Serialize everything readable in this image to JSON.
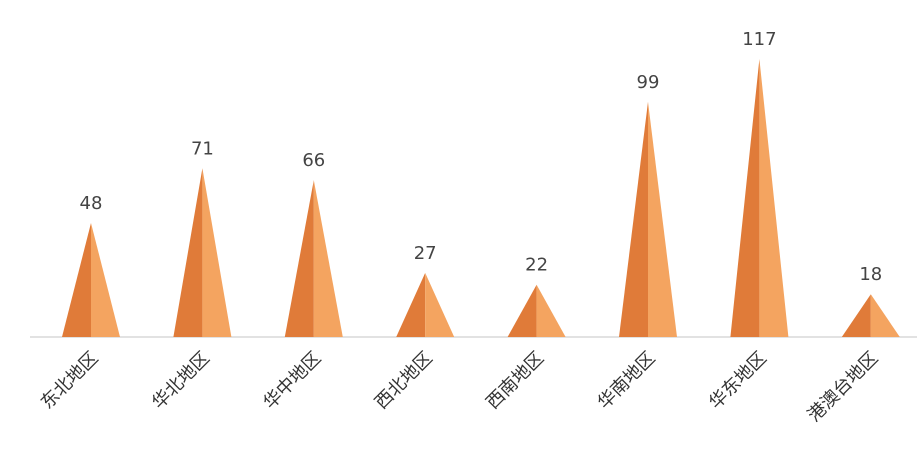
{
  "chart_data": {
    "type": "bar",
    "bar_shape": "cone",
    "categories": [
      "东北地区",
      "华北地区",
      "华中地区",
      "西北地区",
      "西南地区",
      "华南地区",
      "华东地区",
      "港澳台地区"
    ],
    "values": [
      48,
      71,
      66,
      27,
      22,
      99,
      117,
      18
    ],
    "title": "",
    "xlabel": "",
    "ylabel": "",
    "ylim": [
      0,
      125
    ],
    "grid": false,
    "legend": "none",
    "data_labels": true,
    "tick_label_rotation": -45
  },
  "colors": {
    "bar_light": "#F4A460",
    "bar_dark": "#E07B39",
    "axis": "#D9D9D9",
    "label_text": "#444444"
  }
}
